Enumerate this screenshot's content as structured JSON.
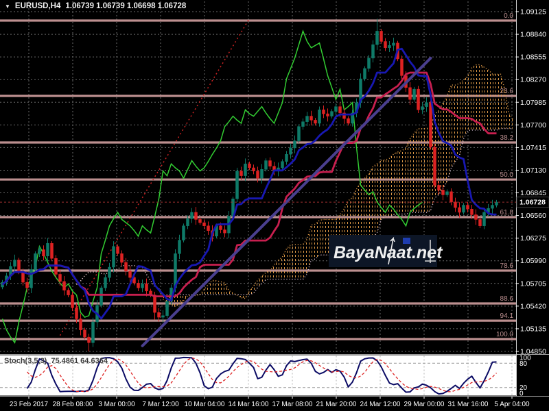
{
  "title": {
    "symbol": "EURUSD,H4",
    "values": "1.06739 1.06739 1.06698 1.06728"
  },
  "watermark": {
    "text": "BayaNaat.net"
  },
  "price_axis": {
    "labels": [
      "1.09125",
      "1.08840",
      "1.08555",
      "1.08270",
      "1.07985",
      "1.07700",
      "1.07415",
      "1.07130",
      "1.06845",
      "1.06560",
      "1.06275",
      "1.05990",
      "1.05705",
      "1.05420",
      "1.05135",
      "1.04850"
    ],
    "current_price": "1.06728"
  },
  "time_axis": {
    "labels": [
      "23 Feb 2017",
      "28 Feb 08:00",
      "3 Mar 00:00",
      "7 Mar 12:00",
      "10 Mar 04:00",
      "14 Mar 16:00",
      "17 Mar 08:00",
      "21 Mar 20:00",
      "24 Mar 12:00",
      "29 Mar 00:00",
      "31 Mar 16:00",
      "5 Apr 04:00"
    ]
  },
  "fibonacci": {
    "levels": [
      {
        "label": "0.0",
        "price": 1.09013
      },
      {
        "label": "23.6",
        "price": 1.08065
      },
      {
        "label": "38.2",
        "price": 1.07479
      },
      {
        "label": "50.0",
        "price": 1.07013
      },
      {
        "label": "61.8",
        "price": 1.06539
      },
      {
        "label": "78.6",
        "price": 1.05867
      },
      {
        "label": "88.6",
        "price": 1.05453
      },
      {
        "label": "94.1",
        "price": 1.05237
      },
      {
        "label": "100.0",
        "price": 1.05005
      }
    ]
  },
  "indicators": {
    "stoch": {
      "name": "Stoch(3,5,3)",
      "values": "75.4861 64.6364",
      "scale": [
        "100",
        "80",
        "20",
        "0"
      ],
      "levels": [
        80,
        20
      ]
    }
  },
  "colors": {
    "background": "#000000",
    "grid": "#6a6a6a",
    "grid_light": "#b3b3b3",
    "bull_candle": "#0f7a68",
    "bear_candle": "#dd2222",
    "ma_blue": "#1818b2",
    "ma_crimson": "#c81f4f",
    "chikou_lime": "#32cd32",
    "senkou_a_orange": "#e8a04a",
    "senkou_b_thistle": "#d8bfd8",
    "fib": "#bc8f8f",
    "trendline": "#4a3f8f",
    "trend_dotted": "#cc2222",
    "stoch_k": "#0a0a64",
    "stoch_d": "#dd2222",
    "stoch_bg": "#ffffff",
    "axis_text": "#ffffff",
    "badge_bg": "#000000",
    "badge_text": "#ffffff",
    "watermark_bg": "#0d1626",
    "watermark_text": "#f0f0f0",
    "watermark_square": "#1e3db0"
  },
  "chart_data": {
    "type": "candlestick",
    "symbol": "EURUSD",
    "timeframe": "H4",
    "x_range": [
      "23 Feb 2017",
      "5 Apr 04:00"
    ],
    "y_range": [
      1.0485,
      1.09125
    ],
    "quote": {
      "open": 1.06739,
      "high": 1.06739,
      "low": 1.06698,
      "close": 1.06728
    },
    "estimation_note": "close series estimated from chart pixels",
    "closes": [
      1.0572,
      1.058,
      1.0592,
      1.06,
      1.0585,
      1.0572,
      1.0565,
      1.0588,
      1.0608,
      1.0613,
      1.0605,
      1.0621,
      1.0602,
      1.0582,
      1.0573,
      1.0562,
      1.0556,
      1.054,
      1.0526,
      1.0512,
      1.0503,
      1.0496,
      1.0522,
      1.0543,
      1.0565,
      1.0578,
      1.0591,
      1.0617,
      1.0608,
      1.0597,
      1.0586,
      1.0578,
      1.0571,
      1.0565,
      1.057,
      1.0561,
      1.0556,
      1.0534,
      1.0528,
      1.053,
      1.0548,
      1.0565,
      1.0608,
      1.0625,
      1.0643,
      1.0652,
      1.066,
      1.0651,
      1.0647,
      1.0643,
      1.0637,
      1.063,
      1.0643,
      1.0638,
      1.0634,
      1.0655,
      1.0677,
      1.0712,
      1.0706,
      1.0721,
      1.0716,
      1.0712,
      1.0703,
      1.0714,
      1.0725,
      1.0718,
      1.0712,
      1.0716,
      1.0724,
      1.0733,
      1.0741,
      1.075,
      1.0768,
      1.0774,
      1.0781,
      1.0776,
      1.0772,
      1.0789,
      1.0784,
      1.0781,
      1.0787,
      1.0793,
      1.0785,
      1.0778,
      1.0772,
      1.0785,
      1.0798,
      1.0828,
      1.0841,
      1.0854,
      1.0871,
      1.0888,
      1.0875,
      1.0867,
      1.087,
      1.0873,
      1.0853,
      1.0832,
      1.0817,
      1.0802,
      1.0815,
      1.0789,
      1.0793,
      1.0798,
      1.0742,
      1.0694,
      1.0688,
      1.0682,
      1.0686,
      1.0673,
      1.0666,
      1.066,
      1.0669,
      1.0664,
      1.0657,
      1.0651,
      1.0643,
      1.066,
      1.0665,
      1.0669,
      1.06728
    ],
    "overlays": [
      "blue-midline",
      "crimson-midline",
      "lime-shifted-close",
      "dotted-cloud",
      "fibonacci-retracement",
      "trendlines",
      "stochastic(3,5,3)"
    ],
    "trendlines": [
      {
        "name": "uptrend-support",
        "style": "solid",
        "width": 4,
        "from": {
          "bar": 34,
          "price": 1.0492
        },
        "to": {
          "bar": 104,
          "price": 1.0854
        }
      },
      {
        "name": "dotted-rising-line",
        "style": "dotted",
        "width": 1.5,
        "from": {
          "bar": 14,
          "price": 1.0505
        },
        "to": {
          "bar": 60,
          "price": 1.0904
        }
      }
    ],
    "stoch_last": {
      "k": 75.4861,
      "d": 64.6364
    }
  }
}
